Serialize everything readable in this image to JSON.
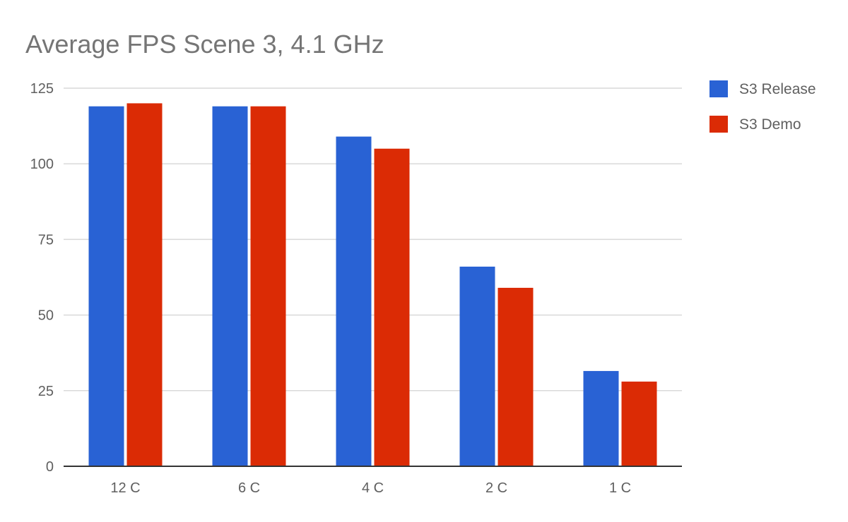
{
  "chart_data": {
    "type": "bar",
    "title": "Average FPS Scene 3, 4.1 GHz",
    "xlabel": "",
    "ylabel": "",
    "categories": [
      "12 C",
      "6 C",
      "4 C",
      "2 C",
      "1 C"
    ],
    "series": [
      {
        "name": "S3 Release",
        "color": "#2962d4",
        "values": [
          119,
          119,
          109,
          66,
          31.5
        ]
      },
      {
        "name": "S3 Demo",
        "color": "#db2b05",
        "values": [
          120,
          119,
          105,
          59,
          28
        ]
      }
    ],
    "ylim": [
      0,
      125
    ],
    "yticks": [
      0,
      25,
      50,
      75,
      100,
      125
    ],
    "grid": true,
    "legend_position": "right"
  }
}
